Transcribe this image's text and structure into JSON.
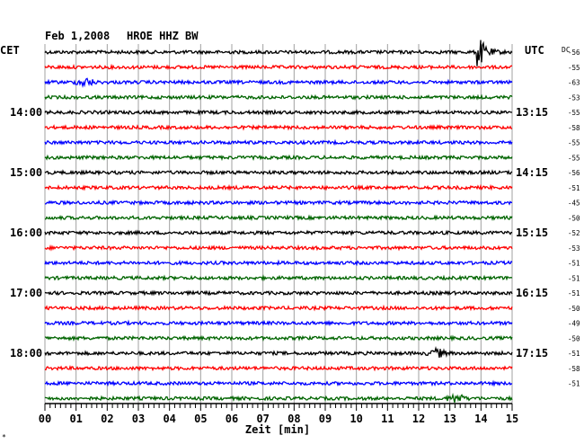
{
  "chart_data": {
    "type": "line",
    "title": "Feb 1,2008",
    "station": "HROE HHZ BW",
    "left_timezone": "CET",
    "right_timezone": "UTC",
    "dc_header": "DC",
    "xlabel": "Zeit [min]",
    "xlim": [
      0,
      15
    ],
    "x_ticks": [
      "00",
      "01",
      "02",
      "03",
      "04",
      "05",
      "06",
      "07",
      "08",
      "09",
      "10",
      "11",
      "12",
      "13",
      "14",
      "15"
    ],
    "left_hour_labels": [
      "14:00",
      "15:00",
      "16:00",
      "17:00",
      "18:00"
    ],
    "right_hour_labels": [
      "13:15",
      "14:15",
      "15:15",
      "16:15",
      "17:15"
    ],
    "dc_offsets": [
      "-56",
      "-55",
      "-63",
      "-53",
      "-55",
      "-58",
      "-55",
      "-55",
      "-56",
      "-51",
      "-45",
      "-50",
      "-52",
      "-53",
      "-51",
      "-51",
      "-51",
      "-50",
      "-49",
      "-50",
      "-51",
      "-58",
      "-51"
    ],
    "trace_colors": [
      "#000000",
      "#ff0000",
      "#0000ff",
      "#006400"
    ],
    "events": [
      {
        "trace": 0,
        "x_min": 13.85,
        "label": "earthquake"
      },
      {
        "trace": 2,
        "x_min": 1.3,
        "label": "noise burst"
      },
      {
        "trace": 20,
        "x_min": 12.6,
        "label": "noise burst"
      },
      {
        "trace": 23,
        "x_min": 13.2,
        "label": "noise burst"
      }
    ],
    "footnote": "*"
  }
}
